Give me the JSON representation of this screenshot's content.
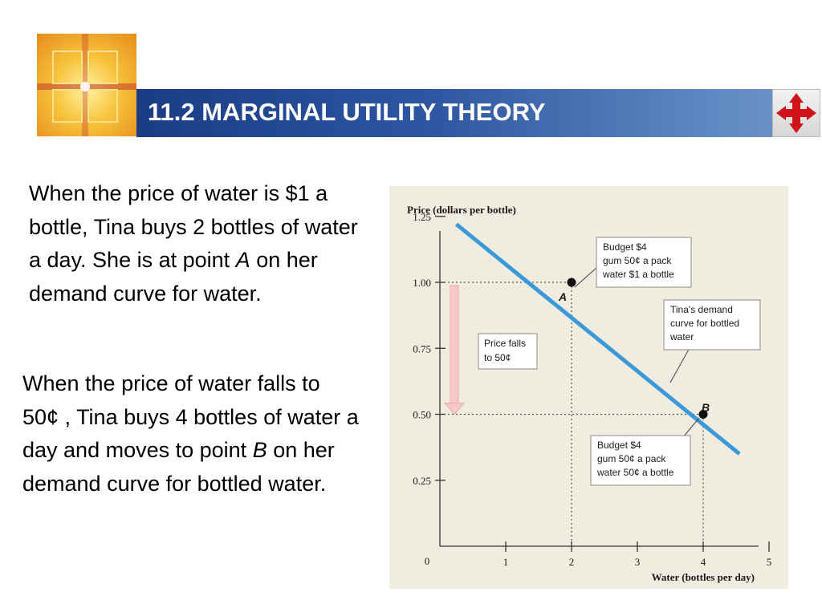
{
  "header": {
    "title": "11.2 MARGINAL UTILITY THEORY",
    "logo_icon": "cross-window-logo-icon",
    "nav_icon": "four-arrows-navigation-icon",
    "title_bar_color": "#1a3c86",
    "nav_icon_color": "#d0121b"
  },
  "content": {
    "para1_before": "When the price of water is $1 a bottle, Tina buys 2 bottles of water a day. She is at point ",
    "para1_point": "A",
    "para1_after": " on her demand curve for water.",
    "para2_before": "When the price of water falls to 50¢ , Tina buys 4 bottles of water a day and moves to point ",
    "para2_point": "B",
    "para2_after": " on her demand curve for bottled water."
  },
  "chart_data": {
    "type": "line",
    "ylabel": "Price (dollars per bottle)",
    "xlabel": "Water (bottles per day)",
    "xlim": [
      0,
      5
    ],
    "ylim": [
      0,
      1.25
    ],
    "x_ticks": [
      1,
      2,
      3,
      4,
      5
    ],
    "x_tick_labels": [
      "1",
      "2",
      "3",
      "4",
      "5"
    ],
    "y_ticks": [
      0.25,
      0.5,
      0.75,
      1.0,
      1.25
    ],
    "y_tick_labels": [
      "0.25",
      "0.50",
      "0.75",
      "1.00",
      "1.25"
    ],
    "origin_label": "0",
    "grid": false,
    "series": [
      {
        "name": "Tina's demand curve for bottled water",
        "color": "#3a9ad9",
        "x": [
          0.25,
          4.55
        ],
        "y": [
          1.22,
          0.35
        ]
      }
    ],
    "points": [
      {
        "label": "A",
        "x": 2,
        "y": 1.0
      },
      {
        "label": "B",
        "x": 4,
        "y": 0.5
      }
    ],
    "arrow": {
      "from_y": 1.0,
      "to_y": 0.5,
      "color": "#f4b9b9"
    },
    "annotations": {
      "budget_a": [
        "Budget $4",
        "gum 50¢ a pack",
        "water $1 a bottle"
      ],
      "curve": [
        "Tina's demand",
        "curve for bottled",
        "water"
      ],
      "price_falls": [
        "Price falls",
        "to 50¢"
      ],
      "budget_b": [
        "Budget $4",
        "gum 50¢ a pack",
        "water 50¢ a bottle"
      ]
    }
  }
}
